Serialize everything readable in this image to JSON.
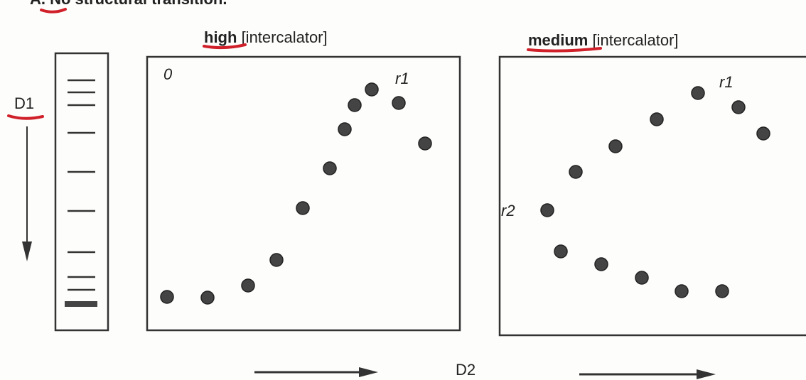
{
  "header": {
    "title": "A. No structural transition."
  },
  "gel": {
    "axis_label": "D1"
  },
  "panels": [
    {
      "emphasis": "high",
      "title": "[intercalator]",
      "labels": [
        "0",
        "r1"
      ]
    },
    {
      "emphasis": "medium",
      "title": "[intercalator]",
      "labels": [
        "r1",
        "r2"
      ]
    }
  ],
  "footer": {
    "axis_label": "D2"
  }
}
